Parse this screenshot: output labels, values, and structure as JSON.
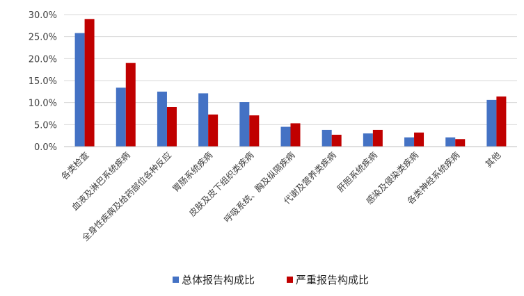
{
  "chart_data": {
    "type": "bar",
    "title": "",
    "xlabel": "",
    "ylabel": "",
    "ylim": [
      0,
      30
    ],
    "y_ticks": [
      "0.0%",
      "5.0%",
      "10.0%",
      "15.0%",
      "20.0%",
      "25.0%",
      "30.0%"
    ],
    "grid": true,
    "legend_position": "bottom",
    "categories": [
      "各类检查",
      "血液及淋巴系统疾病",
      "全身性疾病及给药部位各种反应",
      "胃肠系统疾病",
      "皮肤及皮下组织类疾病",
      "呼吸系统、胸及纵隔疾病",
      "代谢及营养类疾病",
      "肝胆系统疾病",
      "感染及侵染类疾病",
      "各类神经系统疾病",
      "其他"
    ],
    "series": [
      {
        "name": "总体报告构成比",
        "color": "#4472C4",
        "values": [
          25.8,
          13.4,
          12.5,
          12.1,
          10.1,
          4.5,
          3.8,
          3.0,
          2.1,
          2.1,
          10.6
        ]
      },
      {
        "name": "严重报告构成比",
        "color": "#C00000",
        "values": [
          29.0,
          19.0,
          9.0,
          7.3,
          7.1,
          5.3,
          2.7,
          3.8,
          3.2,
          1.7,
          11.4
        ]
      }
    ]
  }
}
